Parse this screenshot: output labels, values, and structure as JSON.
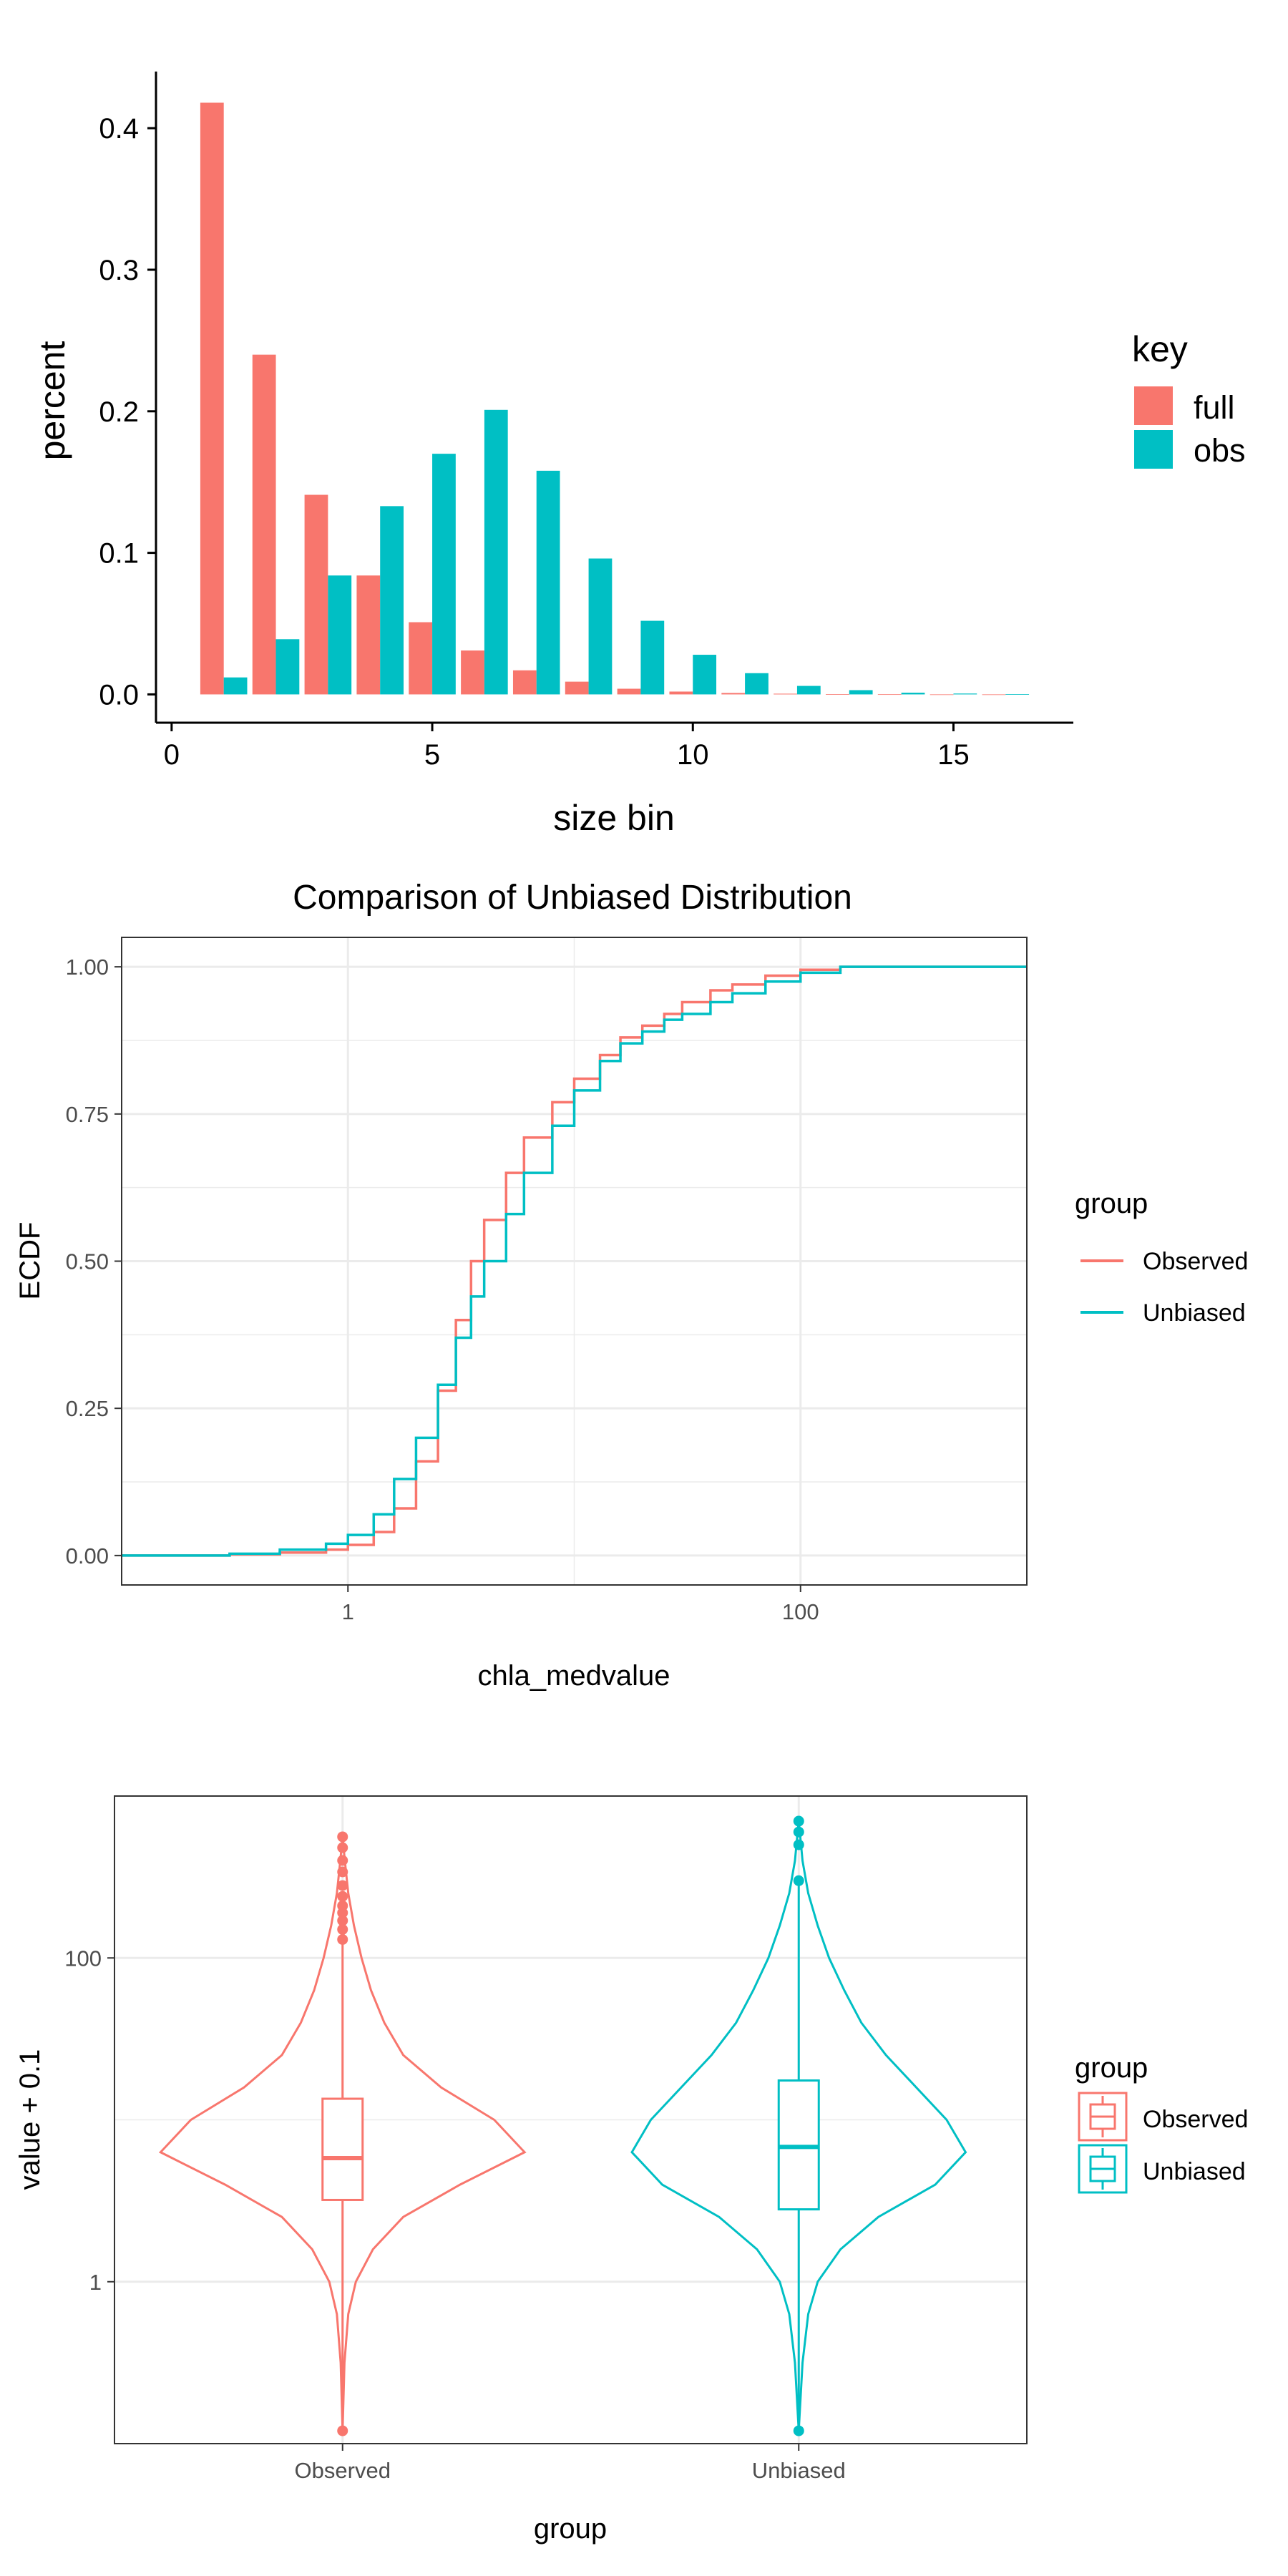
{
  "colors": {
    "red": "#F8766D",
    "teal": "#00BFC4",
    "grid": "#EBEBEB",
    "axis": "#333333",
    "text": "#222222"
  },
  "chart_data": [
    {
      "type": "bar",
      "title": "",
      "xlabel": "size bin",
      "ylabel": "percent",
      "xlim": [
        -0.3,
        17.3
      ],
      "ylim": [
        -0.02,
        0.44
      ],
      "xticks": [
        0,
        5,
        10,
        15
      ],
      "yticks": [
        0.0,
        0.1,
        0.2,
        0.3,
        0.4
      ],
      "xtick_labels": [
        "0",
        "5",
        "10",
        "15"
      ],
      "ytick_labels": [
        "0.0",
        "0.1",
        "0.2",
        "0.3",
        "0.4"
      ],
      "grid": false,
      "legend": {
        "title": "key",
        "position": "right",
        "items": [
          "full",
          "obs"
        ]
      },
      "x": [
        1,
        2,
        3,
        4,
        5,
        6,
        7,
        8,
        9,
        10,
        11,
        12,
        13,
        14,
        15,
        16
      ],
      "series": [
        {
          "name": "full",
          "color": "#F8766D",
          "values": [
            0.418,
            0.24,
            0.141,
            0.084,
            0.051,
            0.031,
            0.017,
            0.009,
            0.004,
            0.002,
            0.001,
            0.0005,
            0.0002,
            0.0001,
            0.0,
            0.0
          ]
        },
        {
          "name": "obs",
          "color": "#00BFC4",
          "values": [
            0.012,
            0.039,
            0.084,
            0.133,
            0.17,
            0.201,
            0.158,
            0.096,
            0.052,
            0.028,
            0.015,
            0.006,
            0.003,
            0.0012,
            0.0006,
            0.0002
          ]
        }
      ]
    },
    {
      "type": "line",
      "title": "Comparison of Unbiased Distribution",
      "xlabel": "chla_medvalue",
      "ylabel": "ECDF",
      "x_scale": "log10",
      "xlim": [
        0.1,
        1000
      ],
      "ylim": [
        -0.05,
        1.05
      ],
      "xticks": [
        1,
        100
      ],
      "xtick_labels": [
        "1",
        "100"
      ],
      "yticks": [
        0,
        0.25,
        0.5,
        0.75,
        1.0
      ],
      "ytick_labels": [
        "0.00",
        "0.25",
        "0.50",
        "0.75",
        "1.00"
      ],
      "grid": true,
      "legend": {
        "title": "group",
        "position": "right",
        "items": [
          "Observed",
          "Unbiased"
        ]
      },
      "series": [
        {
          "name": "Observed",
          "color": "#F8766D",
          "x": [
            0.1,
            0.3,
            0.5,
            0.8,
            1.0,
            1.3,
            1.6,
            2.0,
            2.5,
            3.0,
            3.5,
            4.0,
            5.0,
            6.0,
            8.0,
            10,
            13,
            16,
            20,
            25,
            30,
            40,
            50,
            70,
            100,
            150,
            200,
            300,
            1000
          ],
          "y": [
            0.0,
            0.002,
            0.005,
            0.01,
            0.018,
            0.04,
            0.08,
            0.16,
            0.28,
            0.4,
            0.5,
            0.57,
            0.65,
            0.71,
            0.77,
            0.81,
            0.85,
            0.88,
            0.9,
            0.92,
            0.94,
            0.96,
            0.97,
            0.985,
            0.995,
            1.0,
            1.0,
            1.0,
            1.0
          ]
        },
        {
          "name": "Unbiased",
          "color": "#00BFC4",
          "x": [
            0.1,
            0.3,
            0.5,
            0.8,
            1.0,
            1.3,
            1.6,
            2.0,
            2.5,
            3.0,
            3.5,
            4.0,
            5.0,
            6.0,
            8.0,
            10,
            13,
            16,
            20,
            25,
            30,
            40,
            50,
            70,
            100,
            150,
            200,
            300,
            1000
          ],
          "y": [
            0.0,
            0.003,
            0.01,
            0.02,
            0.035,
            0.07,
            0.13,
            0.2,
            0.29,
            0.37,
            0.44,
            0.5,
            0.58,
            0.65,
            0.73,
            0.79,
            0.84,
            0.87,
            0.89,
            0.91,
            0.92,
            0.94,
            0.955,
            0.975,
            0.99,
            1.0,
            1.0,
            1.0,
            1.0
          ]
        }
      ]
    },
    {
      "type": "violin",
      "title": "",
      "xlabel": "group",
      "ylabel": "value + 0.1",
      "y_scale": "log10",
      "ylim": [
        0.1,
        1000
      ],
      "yticks": [
        1,
        100
      ],
      "ytick_labels": [
        "1",
        "100"
      ],
      "categories": [
        "Observed",
        "Unbiased"
      ],
      "grid": true,
      "legend": {
        "title": "group",
        "position": "right",
        "items": [
          "Observed",
          "Unbiased"
        ]
      },
      "series": [
        {
          "name": "Observed",
          "color": "#F8766D",
          "box": {
            "min": 0.12,
            "q1": 3.2,
            "median": 5.8,
            "q3": 13.5,
            "whisker_high": 180
          },
          "outliers": [
            0.12,
            130,
            150,
            170,
            190,
            210,
            240,
            280,
            340,
            400,
            480,
            560
          ],
          "violin": {
            "logv": [
              -0.92,
              -0.5,
              -0.2,
              0,
              0.2,
              0.4,
              0.6,
              0.8,
              1.0,
              1.2,
              1.4,
              1.6,
              1.8,
              2.0,
              2.2,
              2.4,
              2.6,
              2.75
            ],
            "width": [
              0.0,
              0.01,
              0.03,
              0.07,
              0.16,
              0.32,
              0.62,
              0.96,
              0.8,
              0.52,
              0.32,
              0.22,
              0.15,
              0.1,
              0.06,
              0.03,
              0.012,
              0.0
            ]
          }
        },
        {
          "name": "Unbiased",
          "color": "#00BFC4",
          "box": {
            "min": 0.12,
            "q1": 2.8,
            "median": 6.8,
            "q3": 17.5,
            "whisker_high": 280
          },
          "outliers": [
            0.12,
            300,
            500,
            600,
            700
          ],
          "violin": {
            "logv": [
              -0.92,
              -0.5,
              -0.2,
              0,
              0.2,
              0.4,
              0.6,
              0.8,
              1.0,
              1.2,
              1.4,
              1.6,
              1.8,
              2.0,
              2.2,
              2.4,
              2.6,
              2.85
            ],
            "width": [
              0.0,
              0.02,
              0.05,
              0.1,
              0.22,
              0.42,
              0.72,
              0.88,
              0.78,
              0.62,
              0.46,
              0.33,
              0.24,
              0.16,
              0.1,
              0.05,
              0.02,
              0.0
            ]
          }
        }
      ]
    }
  ]
}
